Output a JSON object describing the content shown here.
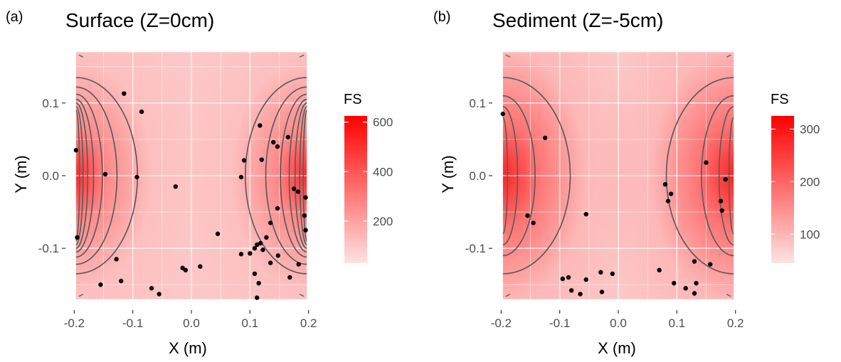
{
  "chart_data": [
    {
      "type": "heatmap",
      "panel_label": "(a)",
      "title": "Surface (Z=0cm)",
      "xlabel": "X (m)",
      "ylabel": "Y (m)",
      "xlim": [
        -0.215,
        0.215
      ],
      "ylim": [
        -0.185,
        0.185
      ],
      "x_ticks": [
        -0.2,
        -0.1,
        0.0,
        0.1,
        0.2
      ],
      "x_tick_labels": [
        "-0.2",
        "-0.1",
        "0.0",
        "0.1",
        "0.2"
      ],
      "y_ticks": [
        -0.1,
        0.0,
        0.1
      ],
      "y_tick_labels": [
        "-0.1",
        "0.0",
        "0.1"
      ],
      "grid": true,
      "legend": {
        "title": "FS",
        "position": "right",
        "ticks": [
          200,
          400,
          600
        ],
        "tick_labels": [
          "200",
          "400",
          "600"
        ],
        "range": [
          30,
          625
        ],
        "low_color": "#fde2e2",
        "high_color": "#ff0000"
      },
      "field_extent": {
        "x": [
          -0.197,
          0.197
        ],
        "y": [
          -0.17,
          0.17
        ]
      },
      "contour_color": "#5c5c5c",
      "point_color": "#000000",
      "points": [
        [
          -0.197,
          0.035
        ],
        [
          -0.195,
          -0.085
        ],
        [
          -0.115,
          0.113
        ],
        [
          -0.085,
          0.088
        ],
        [
          -0.147,
          0.002
        ],
        [
          -0.093,
          -0.002
        ],
        [
          -0.027,
          -0.015
        ],
        [
          -0.128,
          -0.115
        ],
        [
          -0.155,
          -0.15
        ],
        [
          -0.12,
          -0.145
        ],
        [
          -0.068,
          -0.155
        ],
        [
          -0.055,
          -0.163
        ],
        [
          -0.015,
          -0.127
        ],
        [
          -0.01,
          -0.13
        ],
        [
          0.015,
          -0.125
        ],
        [
          0.045,
          -0.08
        ],
        [
          0.085,
          -0.002
        ],
        [
          0.09,
          0.021
        ],
        [
          0.117,
          0.069
        ],
        [
          0.12,
          0.022
        ],
        [
          0.085,
          -0.108
        ],
        [
          0.1,
          -0.107
        ],
        [
          0.108,
          -0.1
        ],
        [
          0.112,
          -0.095
        ],
        [
          0.118,
          -0.093
        ],
        [
          0.122,
          -0.102
        ],
        [
          0.128,
          -0.085
        ],
        [
          0.135,
          -0.12
        ],
        [
          0.148,
          -0.11
        ],
        [
          0.108,
          -0.135
        ],
        [
          0.112,
          -0.168
        ],
        [
          0.115,
          -0.148
        ],
        [
          0.14,
          0.046
        ],
        [
          0.147,
          0.04
        ],
        [
          0.165,
          0.053
        ],
        [
          0.135,
          -0.065
        ],
        [
          0.147,
          -0.045
        ],
        [
          0.168,
          -0.14
        ],
        [
          0.175,
          -0.018
        ],
        [
          0.182,
          -0.022
        ],
        [
          0.183,
          -0.122
        ],
        [
          0.195,
          -0.03
        ],
        [
          0.193,
          -0.055
        ],
        [
          0.195,
          -0.075
        ]
      ]
    },
    {
      "type": "heatmap",
      "panel_label": "(b)",
      "title": "Sediment (Z=-5cm)",
      "xlabel": "X (m)",
      "ylabel": "Y (m)",
      "xlim": [
        -0.215,
        0.215
      ],
      "ylim": [
        -0.185,
        0.185
      ],
      "x_ticks": [
        -0.2,
        -0.1,
        0.0,
        0.1,
        0.2
      ],
      "x_tick_labels": [
        "-0.2",
        "-0.1",
        "0.0",
        "0.1",
        "0.2"
      ],
      "y_ticks": [
        -0.1,
        0.0,
        0.1
      ],
      "y_tick_labels": [
        "-0.1",
        "0.0",
        "0.1"
      ],
      "grid": true,
      "legend": {
        "title": "FS",
        "position": "right",
        "ticks": [
          100,
          200,
          300
        ],
        "tick_labels": [
          "100",
          "200",
          "300"
        ],
        "range": [
          45,
          325
        ],
        "low_color": "#fde2e2",
        "high_color": "#ff0000"
      },
      "field_extent": {
        "x": [
          -0.197,
          0.197
        ],
        "y": [
          -0.17,
          0.17
        ]
      },
      "contour_color": "#5c5c5c",
      "point_color": "#000000",
      "points": [
        [
          -0.197,
          0.085
        ],
        [
          -0.125,
          0.052
        ],
        [
          -0.155,
          -0.055
        ],
        [
          -0.145,
          -0.065
        ],
        [
          -0.055,
          -0.053
        ],
        [
          -0.095,
          -0.142
        ],
        [
          -0.085,
          -0.14
        ],
        [
          -0.08,
          -0.158
        ],
        [
          -0.065,
          -0.163
        ],
        [
          -0.055,
          -0.143
        ],
        [
          -0.03,
          -0.133
        ],
        [
          -0.028,
          -0.16
        ],
        [
          -0.01,
          -0.135
        ],
        [
          0.07,
          -0.13
        ],
        [
          0.08,
          -0.012
        ],
        [
          0.085,
          -0.035
        ],
        [
          0.09,
          -0.025
        ],
        [
          0.095,
          -0.148
        ],
        [
          0.115,
          -0.155
        ],
        [
          0.13,
          -0.162
        ],
        [
          0.13,
          -0.118
        ],
        [
          0.133,
          -0.148
        ],
        [
          0.15,
          0.018
        ],
        [
          0.157,
          -0.122
        ],
        [
          0.175,
          -0.035
        ],
        [
          0.177,
          -0.048
        ],
        [
          0.183,
          -0.005
        ]
      ]
    }
  ]
}
